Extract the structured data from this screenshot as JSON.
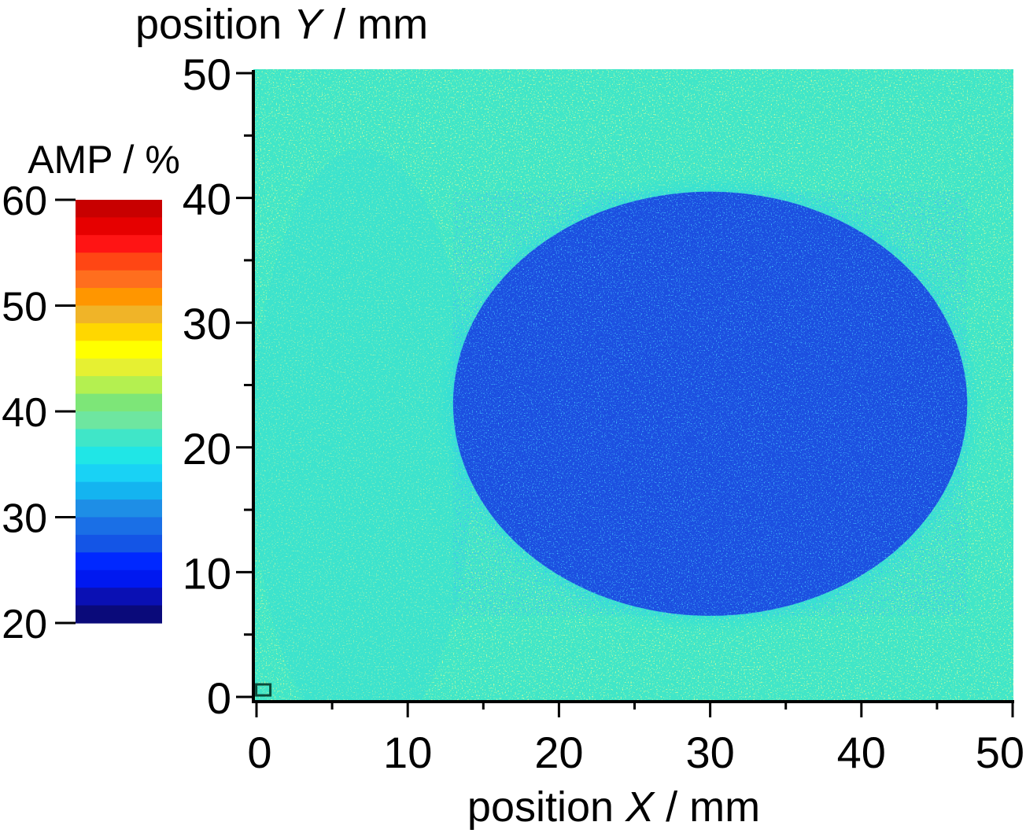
{
  "chart_data": {
    "type": "heatmap",
    "title": "",
    "xlabel": {
      "prefix": "position ",
      "var": "X",
      "suffix": " / mm"
    },
    "ylabel": {
      "prefix": "position ",
      "var": "Y",
      "suffix": " / mm"
    },
    "xlim": [
      0,
      50
    ],
    "ylim": [
      0,
      50
    ],
    "x_ticks": [
      0,
      10,
      20,
      30,
      40,
      50
    ],
    "y_ticks": [
      0,
      10,
      20,
      30,
      40,
      50
    ],
    "colorbar": {
      "label": "AMP / %",
      "range": [
        20,
        60
      ],
      "ticks": [
        20,
        30,
        40,
        50,
        60
      ],
      "colors": [
        "#0a0a7a",
        "#0a10b4",
        "#0018f0",
        "#0028ff",
        "#1455e6",
        "#1a6fe6",
        "#1e8ee6",
        "#14b4f0",
        "#19d2f5",
        "#20e6e6",
        "#40e6c8",
        "#6ee6a0",
        "#7de678",
        "#b4f050",
        "#e6f032",
        "#ffff00",
        "#ffd700",
        "#f0b428",
        "#ff9600",
        "#ff6e1e",
        "#ff4614",
        "#ff1414",
        "#e60000",
        "#c80000"
      ]
    },
    "background_level_percent": 38,
    "defect": {
      "shape": "ellipse",
      "center_mm": [
        30,
        23.5
      ],
      "radius_x_mm": 17,
      "radius_y_mm": 17,
      "level_percent": 25
    },
    "marker_at_mm": [
      0.5,
      0.5
    ]
  }
}
